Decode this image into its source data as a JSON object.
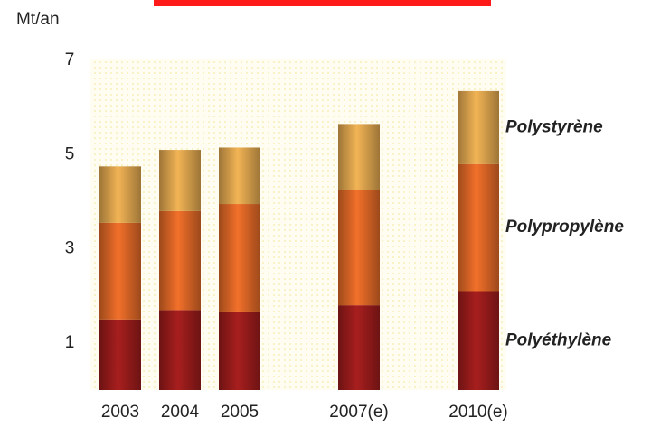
{
  "chart_data": {
    "type": "stacked_bar",
    "y_label": "Mt/an",
    "categories": [
      "2003",
      "2004",
      "2005",
      null,
      "2007(e)",
      null,
      "2010(e)"
    ],
    "series": [
      {
        "name": "Polyéthylène",
        "color": "#a81e1e",
        "values": [
          1.5,
          1.7,
          1.65,
          null,
          1.8,
          null,
          2.1
        ]
      },
      {
        "name": "Polypropylène",
        "color": "#f2702a",
        "values": [
          2.05,
          2.1,
          2.3,
          null,
          2.45,
          null,
          2.7
        ]
      },
      {
        "name": "Polystyrène",
        "color": "#f2b455",
        "values": [
          1.2,
          1.3,
          1.2,
          null,
          1.4,
          null,
          1.55
        ]
      }
    ],
    "ylim": [
      0,
      7
    ],
    "yticks": [
      1,
      3,
      5,
      7
    ],
    "grid": false
  }
}
